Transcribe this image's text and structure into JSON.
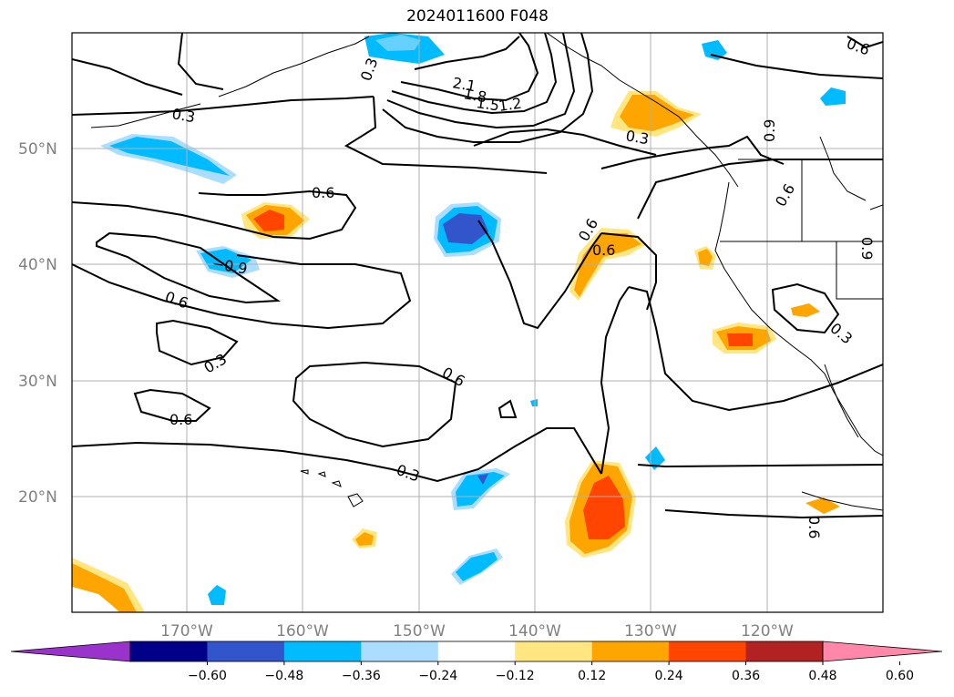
{
  "title": "2024011600 F048",
  "lat_labels": [
    "50°N",
    "40°N",
    "30°N",
    "20°N"
  ],
  "lon_labels": [
    "170°W",
    "160°W",
    "150°W",
    "140°W",
    "130°W",
    "120°W"
  ],
  "colorbar": {
    "colors": [
      "#9933cc",
      "#000088",
      "#3355cc",
      "#00bbff",
      "#aaddff",
      "#ffffff",
      "#ffe680",
      "#ffa500",
      "#ff4500",
      "#b22222",
      "#ff88aa"
    ],
    "tick_labels": [
      "−0.60",
      "−0.48",
      "−0.36",
      "−0.24",
      "−0.12",
      "0.12",
      "0.24",
      "0.36",
      "0.48",
      "0.60"
    ]
  },
  "contour_labels": [
    "2.1",
    "1.8",
    "1.5",
    "1.2",
    "0.3",
    "0.6",
    "0.6",
    "0.6",
    "−0.9",
    "0.6",
    "0.3",
    "0.6",
    "0.6",
    "0.3",
    "0.3",
    "0.3",
    "0.9",
    "0.6",
    "0.3",
    "0.9",
    "0.6",
    "0.6"
  ],
  "colors": {
    "contour": "#000000",
    "grid": "#b0b0b0",
    "coast": "#000000"
  }
}
